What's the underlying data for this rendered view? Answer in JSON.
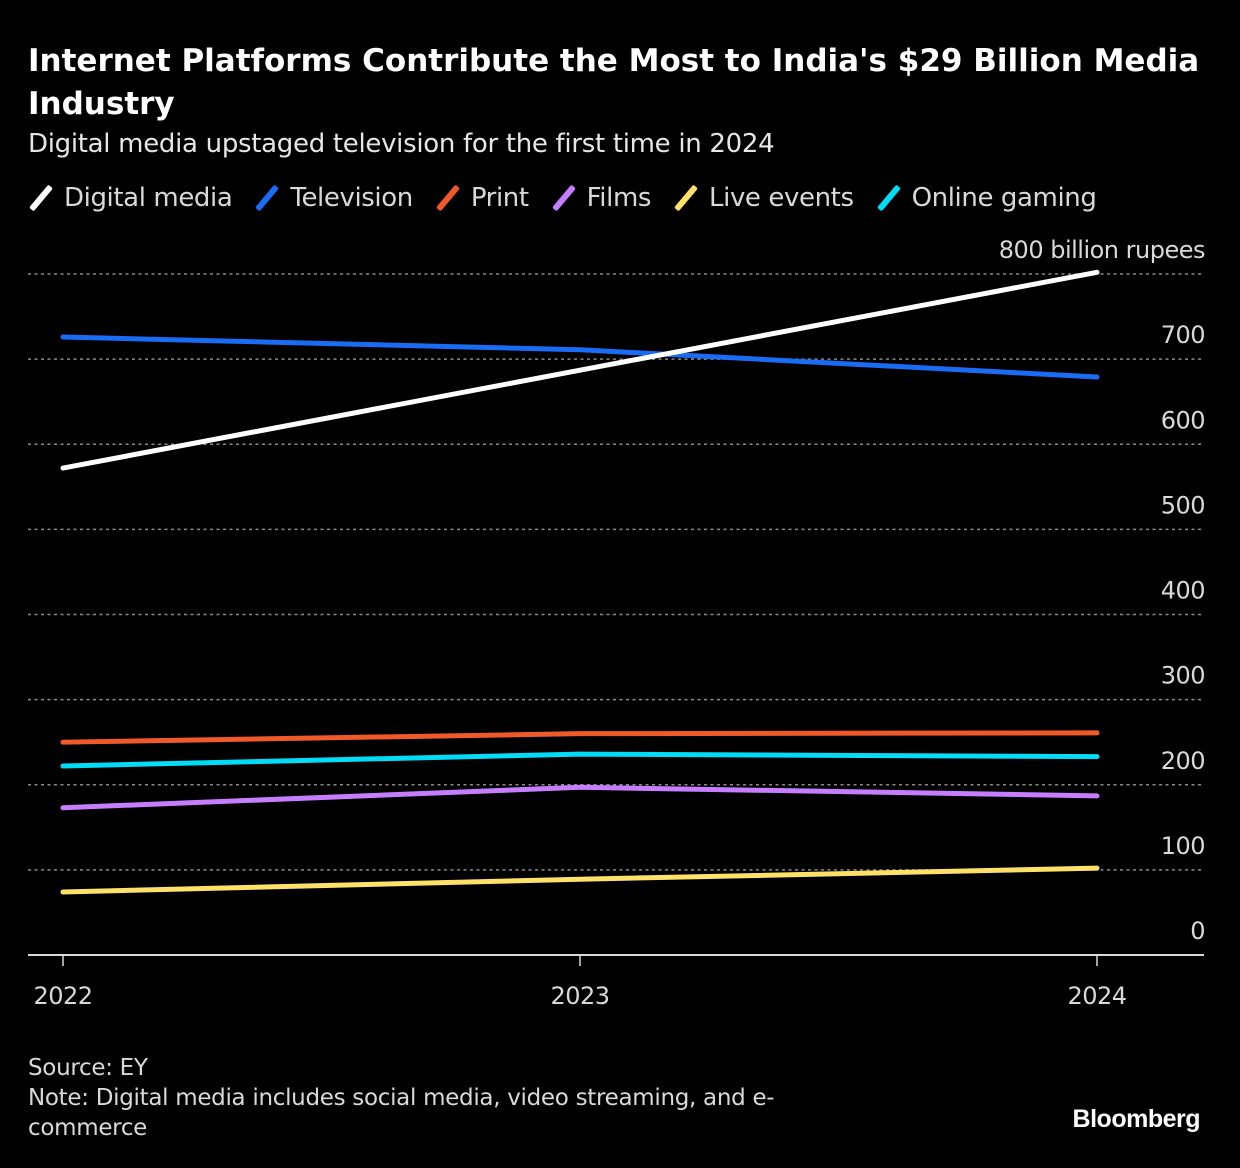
{
  "header": {
    "title": "Internet Platforms Contribute the Most to India's $29 Billion Media Industry",
    "subtitle": "Digital media upstaged television for the first time in 2024"
  },
  "footer": {
    "source": "Source: EY",
    "note": "Note: Digital media includes social media, video streaming, and e-commerce",
    "brand": "Bloomberg"
  },
  "chart_data": {
    "type": "line",
    "title": "Internet Platforms Contribute the Most to India's $29 Billion Media Industry",
    "subtitle": "Digital media upstaged television for the first time in 2024",
    "xlabel": "",
    "ylabel": "billion rupees",
    "y_unit_label": "800 billion rupees",
    "x": [
      "2022",
      "2023",
      "2024"
    ],
    "ylim": [
      0,
      800
    ],
    "yticks": [
      0,
      100,
      200,
      300,
      400,
      500,
      600,
      700,
      800
    ],
    "ytick_labels": [
      "0",
      "100",
      "200",
      "300",
      "400",
      "500",
      "600",
      "700",
      "800 billion rupees"
    ],
    "grid": true,
    "legend_position": "top-left",
    "series": [
      {
        "name": "Digital media",
        "color": "#ffffff",
        "values": [
          572,
          687,
          802
        ]
      },
      {
        "name": "Television",
        "color": "#1a6cf5",
        "values": [
          726,
          711,
          679
        ]
      },
      {
        "name": "Print",
        "color": "#f05a2a",
        "values": [
          250,
          260,
          261
        ]
      },
      {
        "name": "Films",
        "color": "#c77dff",
        "values": [
          173,
          197,
          187
        ]
      },
      {
        "name": "Live events",
        "color": "#ffe16a",
        "values": [
          74,
          89,
          102
        ]
      },
      {
        "name": "Online gaming",
        "color": "#00dcf5",
        "values": [
          222,
          236,
          233
        ]
      }
    ]
  }
}
